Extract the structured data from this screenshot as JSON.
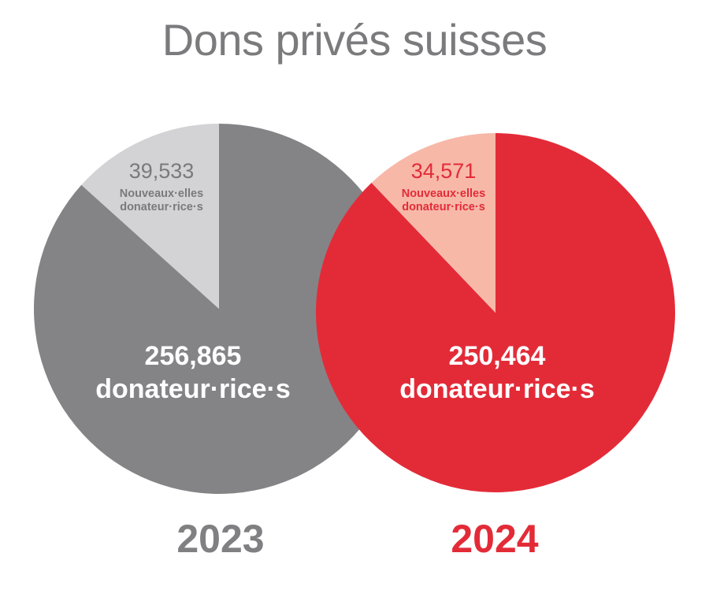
{
  "title": "Dons privés suisses",
  "colors": {
    "title": "#7b7b7d",
    "returning_2023": "#848487",
    "new_2023": "#d3d2d4",
    "new_2023_value": "#7a7a7c",
    "returning_2024": "#e32b38",
    "new_2024": "#f7b8a8",
    "new_2024_value": "#e32b38"
  },
  "chart_data": [
    {
      "type": "pie",
      "year_label": "2023",
      "slices": [
        {
          "value": 256865,
          "value_label": "256,865",
          "label": "donateur·rice·s",
          "color": "#848487"
        },
        {
          "value": 39533,
          "value_label": "39,533",
          "label_line1": "Nouveaux·elles",
          "label_line2": "donateur·rice·s",
          "color": "#d3d2d4"
        }
      ]
    },
    {
      "type": "pie",
      "year_label": "2024",
      "slices": [
        {
          "value": 250464,
          "value_label": "250,464",
          "label": "donateur·rice·s",
          "color": "#e32b38"
        },
        {
          "value": 34571,
          "value_label": "34,571",
          "label_line1": "Nouveaux·elles",
          "label_line2": "donateur·rice·s",
          "color": "#f7b8a8"
        }
      ]
    }
  ]
}
